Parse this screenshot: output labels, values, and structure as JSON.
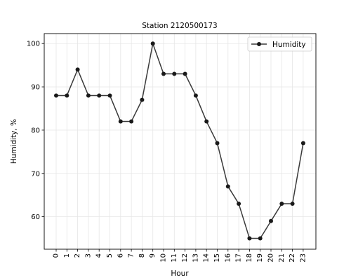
{
  "chart_data": {
    "type": "line",
    "title": "Station 2120500173",
    "xlabel": "Hour",
    "ylabel": "Humidity, %",
    "x": [
      "0",
      "1",
      "2",
      "3",
      "4",
      "5",
      "6",
      "7",
      "8",
      "9",
      "10",
      "11",
      "12",
      "13",
      "14",
      "15",
      "16",
      "17",
      "18",
      "19",
      "20",
      "21",
      "22",
      "23"
    ],
    "series": [
      {
        "name": "Humidity",
        "values": [
          88,
          88,
          94,
          88,
          88,
          88,
          82,
          82,
          87,
          100,
          93,
          93,
          93,
          88,
          82,
          77,
          67,
          63,
          55,
          55,
          59,
          63,
          63,
          77
        ]
      }
    ],
    "ylim": [
      52.5,
      102.3
    ],
    "yticks": [
      60,
      70,
      80,
      90,
      100
    ],
    "grid": true,
    "legend_position": "top-right",
    "line_color": "#3a3a3a",
    "marker_color": "#1a1a1a"
  }
}
